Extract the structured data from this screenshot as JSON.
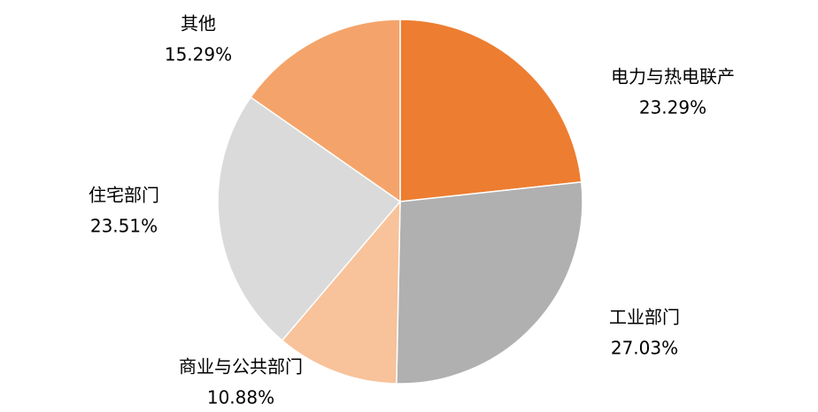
{
  "chart_data": {
    "type": "pie",
    "categories": [
      "电力与热电联产",
      "工业部门",
      "商业与公共部门",
      "住宅部门",
      "其他"
    ],
    "values": [
      23.29,
      27.03,
      10.88,
      23.51,
      15.29
    ],
    "value_labels": [
      "23.29%",
      "27.03%",
      "10.88%",
      "23.51%",
      "15.29%"
    ],
    "colors": [
      "#ED7D31",
      "#B0B0B0",
      "#F8C29A",
      "#DADADA",
      "#F4A46A"
    ]
  }
}
